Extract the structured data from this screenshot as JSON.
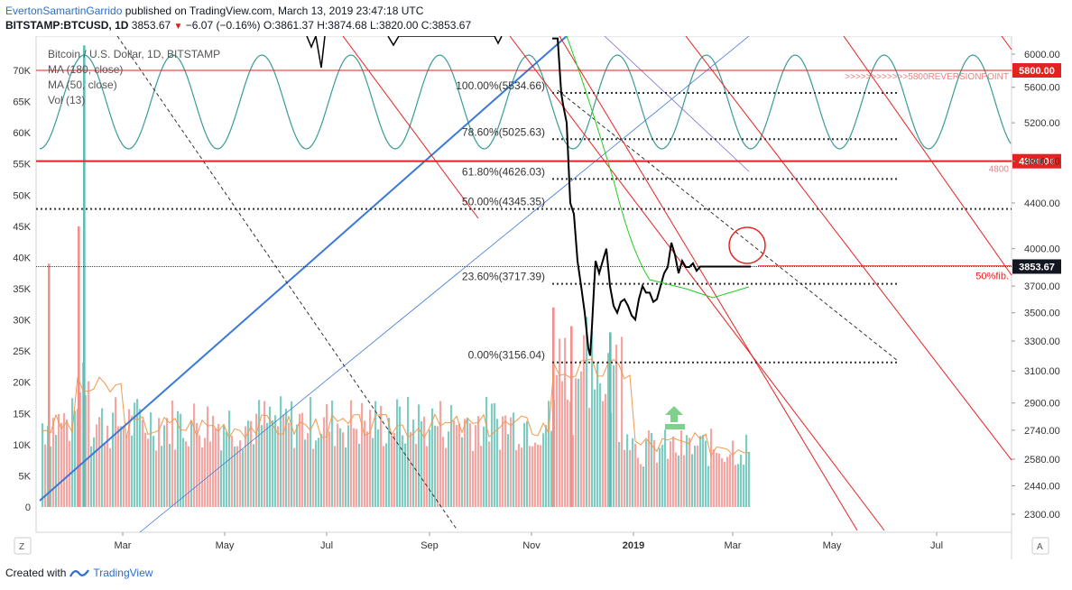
{
  "header": {
    "author": "EvertonSamartinGarrido",
    "published_text": "published on TradingView.com, March 13, 2019 23:47:18 UTC",
    "symbol": "BITSTAMP:BTCUSD, 1D",
    "last": "3853.67",
    "change": "−6.07 (−0.16%)",
    "o_label": "O:",
    "o": "3861.37",
    "h_label": "H:",
    "h": "3874.68",
    "l_label": "L:",
    "l": "3820.00",
    "c_label": "C:",
    "c": "3853.67"
  },
  "legend": {
    "title": "Bitcoin / U.S. Dollar, 1D, BITSTAMP",
    "ma1": "MA (180, close)",
    "ma2": "MA (50, close)",
    "vol": "Vol (13)"
  },
  "footer": {
    "created_with": "Created with",
    "brand": "TradingView"
  },
  "colors": {
    "up": "#5fbfb4",
    "down": "#f2908c",
    "price": "#000000",
    "fib": "#333333",
    "red_line": "#e52222",
    "blue_line": "#3a78d8",
    "sine": "#3a9c94",
    "ma_green": "#22cc22",
    "ma_purple": "#7a6ee0",
    "vol_ma": "#f09a4e",
    "last_badge": "#131722"
  },
  "chart_data": {
    "type": "line",
    "title": "Bitcoin / U.S. Dollar, 1D, BITSTAMP",
    "xlabel": "",
    "ylabel": "",
    "x_ticks": [
      "Mar",
      "May",
      "Jul",
      "Sep",
      "Nov",
      "2019",
      "Mar",
      "May",
      "Jul"
    ],
    "y_ticks_price": [
      6000,
      5600,
      5200,
      4800,
      4400,
      4000,
      3700,
      3500,
      3300,
      3100,
      2900,
      2740,
      2580,
      2440,
      2300
    ],
    "y_ticks_volume": [
      "70K",
      "65K",
      "60K",
      "55K",
      "50K",
      "45K",
      "40K",
      "35K",
      "30K",
      "25K",
      "20K",
      "15K",
      "10K",
      "5K",
      "0"
    ],
    "ylim_price": [
      2300,
      6200
    ],
    "ylim_volume": [
      0,
      70000
    ],
    "scale": "log",
    "grid": false,
    "price_series": {
      "name": "BTCUSD",
      "x_days": [
        0,
        3,
        5,
        6,
        8,
        10,
        12,
        14,
        16,
        18,
        20,
        21,
        22,
        23,
        24,
        26,
        28,
        30,
        32,
        34,
        36,
        38,
        40,
        42,
        44,
        46,
        48,
        50,
        52,
        54,
        56,
        58,
        60,
        62,
        64,
        66,
        68,
        70,
        72,
        74,
        76,
        78,
        80,
        82,
        84,
        86,
        88,
        90,
        92,
        94,
        96,
        98,
        100,
        102,
        104,
        106,
        108,
        110
      ],
      "values": [
        6200,
        6200,
        5530,
        5400,
        5200,
        4400,
        4300,
        3900,
        3700,
        3500,
        3250,
        3200,
        3400,
        3650,
        3900,
        3800,
        3900,
        4000,
        3700,
        3550,
        3500,
        3580,
        3600,
        3550,
        3480,
        3450,
        3600,
        3700,
        3650,
        3650,
        3580,
        3600,
        3700,
        3800,
        3850,
        4050,
        3950,
        3800,
        3900,
        3850,
        3850,
        3880,
        3820,
        3853.67,
        3853.67,
        3853.67,
        3853.67,
        3853.67,
        3853.67,
        3853.67,
        3853.67,
        3853.67,
        3853.67,
        3853.67,
        3853.67,
        3853.67,
        3853.67,
        3853.67
      ]
    },
    "fib_levels": [
      {
        "label": "100.00%(5534.66)",
        "value": 5534.66
      },
      {
        "label": "78.60%(5025.63)",
        "value": 5025.63
      },
      {
        "label": "61.80%(4626.03)",
        "value": 4626.03
      },
      {
        "label": "50.00%(4345.35)",
        "value": 4345.35
      },
      {
        "label": "23.60%(3717.39)",
        "value": 3717.39
      },
      {
        "label": "0.00%(3156.04)",
        "value": 3156.04
      }
    ],
    "horizontal_levels": [
      {
        "value": 5800,
        "label": "5800.00",
        "note": ">>>>>>>>>>>>5800REVERSIONPOINT"
      },
      {
        "value": 4800,
        "label": "4800.00",
        "note": "4800"
      },
      {
        "value": 3853.67,
        "label": "3853.67",
        "note": "50%fib."
      }
    ],
    "volume_ma": "Vol (13)"
  }
}
